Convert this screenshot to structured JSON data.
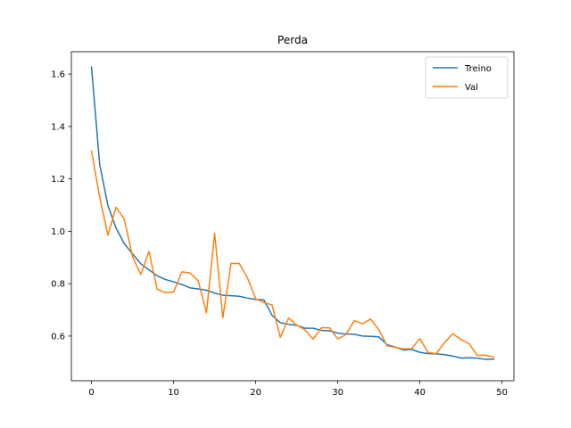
{
  "chart_data": {
    "type": "line",
    "title": "Perda",
    "xlabel": "",
    "ylabel": "",
    "xlim": [
      -2.45,
      51.45
    ],
    "ylim": [
      0.4295,
      1.6855
    ],
    "xticks": [
      0,
      10,
      20,
      30,
      40,
      50
    ],
    "yticks": [
      0.6,
      0.8,
      1.0,
      1.2,
      1.4,
      1.6
    ],
    "ytick_labels": [
      "0.6",
      "0.8",
      "1.0",
      "1.2",
      "1.4",
      "1.6"
    ],
    "grid": false,
    "legend": "top-right",
    "x": [
      0,
      1,
      2,
      3,
      4,
      5,
      6,
      7,
      8,
      9,
      10,
      11,
      12,
      13,
      14,
      15,
      16,
      17,
      18,
      19,
      20,
      21,
      22,
      23,
      24,
      25,
      26,
      27,
      28,
      29,
      30,
      31,
      32,
      33,
      34,
      35,
      36,
      37,
      38,
      39,
      40,
      41,
      42,
      43,
      44,
      45,
      46,
      47,
      48,
      49
    ],
    "series": [
      {
        "name": "Treino",
        "color": "#1f77b4",
        "values": [
          1.627,
          1.255,
          1.098,
          1.012,
          0.952,
          0.914,
          0.876,
          0.853,
          0.83,
          0.816,
          0.807,
          0.797,
          0.784,
          0.78,
          0.775,
          0.764,
          0.756,
          0.754,
          0.752,
          0.745,
          0.74,
          0.738,
          0.679,
          0.651,
          0.645,
          0.641,
          0.63,
          0.63,
          0.622,
          0.62,
          0.611,
          0.608,
          0.607,
          0.6,
          0.599,
          0.597,
          0.567,
          0.558,
          0.547,
          0.549,
          0.538,
          0.533,
          0.532,
          0.529,
          0.524,
          0.516,
          0.517,
          0.516,
          0.511,
          0.512
        ]
      },
      {
        "name": "Val",
        "color": "#ff7f0e",
        "values": [
          1.306,
          1.131,
          0.985,
          1.092,
          1.046,
          0.903,
          0.835,
          0.923,
          0.779,
          0.766,
          0.768,
          0.845,
          0.841,
          0.811,
          0.689,
          0.992,
          0.67,
          0.877,
          0.877,
          0.822,
          0.743,
          0.728,
          0.719,
          0.595,
          0.669,
          0.642,
          0.624,
          0.588,
          0.632,
          0.631,
          0.589,
          0.606,
          0.659,
          0.647,
          0.665,
          0.624,
          0.563,
          0.557,
          0.551,
          0.552,
          0.59,
          0.537,
          0.533,
          0.575,
          0.609,
          0.587,
          0.571,
          0.526,
          0.527,
          0.52
        ]
      }
    ]
  }
}
